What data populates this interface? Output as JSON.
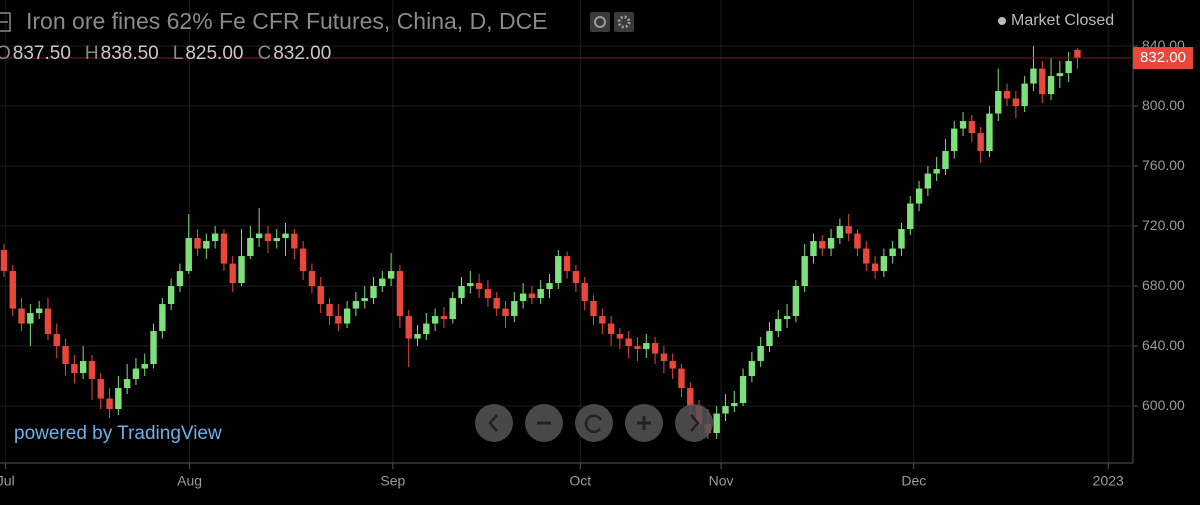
{
  "chart_data": {
    "type": "candlestick",
    "title": "Iron ore fines 62% Fe CFR Futures, China, D, DCE",
    "status": "Market Closed",
    "ohlc_legend": {
      "labels": [
        "O",
        "H",
        "L",
        "C"
      ],
      "values": [
        "837.50",
        "838.50",
        "825.00",
        "832.00"
      ]
    },
    "last_price_label": "832.00",
    "last_price": 832,
    "watermark": "powered by TradingView",
    "up_color": "#7ee07a",
    "down_color": "#e8473b",
    "grid": true,
    "xlim": [
      -0.45,
      128.2
    ],
    "xticks": [
      {
        "value": 0.2,
        "label": "Jul"
      },
      {
        "value": 21.1,
        "label": "Aug"
      },
      {
        "value": 44.2,
        "label": "Sep"
      },
      {
        "value": 65.5,
        "label": "Oct"
      },
      {
        "value": 81.5,
        "label": "Nov"
      },
      {
        "value": 103.4,
        "label": "Dec"
      },
      {
        "value": 125.5,
        "label": "2023"
      }
    ],
    "ylim": [
      562.7,
      870.7
    ],
    "yticks": [
      {
        "value": 600,
        "label": "600.00"
      },
      {
        "value": 640,
        "label": "640.00"
      },
      {
        "value": 680,
        "label": "680.00"
      },
      {
        "value": 720,
        "label": "720.00"
      },
      {
        "value": 760,
        "label": "760.00"
      },
      {
        "value": 800,
        "label": "800.00"
      },
      {
        "value": 840,
        "label": "840.00"
      }
    ],
    "open": [
      704,
      690,
      665,
      655,
      662,
      665,
      648,
      640,
      628,
      622,
      630,
      618,
      605,
      598,
      612,
      618,
      625,
      628,
      650,
      668,
      680,
      690,
      712,
      705,
      710,
      715,
      695,
      682,
      700,
      712,
      715,
      710,
      712,
      715,
      705,
      690,
      680,
      668,
      660,
      655,
      665,
      670,
      672,
      680,
      685,
      690,
      660,
      645,
      648,
      655,
      660,
      658,
      672,
      680,
      682,
      678,
      672,
      665,
      660,
      670,
      675,
      672,
      678,
      682,
      700,
      690,
      682,
      670,
      660,
      655,
      648,
      645,
      640,
      638,
      642,
      635,
      630,
      625,
      612,
      600,
      588,
      582,
      595,
      600,
      602,
      620,
      630,
      640,
      650,
      658,
      660,
      680,
      700,
      710,
      705,
      712,
      720,
      715,
      705,
      695,
      690,
      700,
      705,
      718,
      735,
      745,
      755,
      758,
      770,
      785,
      790,
      782,
      770,
      795,
      810,
      805,
      800,
      815,
      825,
      808,
      820,
      822,
      837.5
    ],
    "high": [
      708,
      694,
      672,
      668,
      670,
      672,
      655,
      645,
      634,
      640,
      634,
      622,
      612,
      620,
      628,
      632,
      635,
      655,
      672,
      685,
      695,
      728,
      718,
      715,
      720,
      718,
      700,
      718,
      720,
      732,
      720,
      718,
      722,
      718,
      710,
      695,
      686,
      672,
      668,
      670,
      676,
      680,
      686,
      690,
      702,
      694,
      664,
      654,
      662,
      665,
      666,
      676,
      686,
      690,
      688,
      684,
      676,
      670,
      676,
      682,
      680,
      684,
      688,
      704,
      703,
      694,
      686,
      674,
      665,
      660,
      652,
      650,
      646,
      648,
      646,
      640,
      635,
      628,
      616,
      604,
      598,
      600,
      608,
      610,
      625,
      636,
      646,
      656,
      664,
      668,
      684,
      708,
      715,
      714,
      718,
      725,
      728,
      718,
      710,
      700,
      705,
      710,
      722,
      740,
      750,
      760,
      766,
      778,
      790,
      796,
      794,
      786,
      800,
      825,
      815,
      810,
      820,
      840,
      830,
      832,
      830,
      836,
      838.5
    ],
    "low": [
      686,
      660,
      650,
      640,
      658,
      644,
      632,
      620,
      615,
      618,
      604,
      598,
      592,
      594,
      608,
      614,
      620,
      625,
      645,
      664,
      676,
      688,
      700,
      698,
      705,
      690,
      676,
      680,
      698,
      706,
      702,
      705,
      700,
      698,
      684,
      675,
      662,
      654,
      650,
      652,
      660,
      665,
      668,
      676,
      680,
      652,
      626,
      640,
      644,
      650,
      652,
      655,
      668,
      675,
      672,
      666,
      660,
      652,
      656,
      665,
      668,
      668,
      672,
      678,
      685,
      676,
      664,
      654,
      648,
      640,
      638,
      632,
      630,
      632,
      628,
      622,
      618,
      606,
      594,
      582,
      578,
      578,
      590,
      596,
      600,
      616,
      626,
      636,
      646,
      652,
      656,
      676,
      695,
      700,
      700,
      708,
      710,
      700,
      690,
      685,
      686,
      695,
      700,
      714,
      730,
      740,
      750,
      754,
      765,
      780,
      776,
      762,
      766,
      790,
      800,
      792,
      796,
      810,
      802,
      804,
      812,
      816,
      825
    ],
    "close": [
      690,
      665,
      655,
      662,
      665,
      648,
      640,
      628,
      622,
      630,
      618,
      605,
      598,
      612,
      618,
      625,
      628,
      650,
      668,
      680,
      690,
      712,
      705,
      710,
      715,
      695,
      682,
      700,
      712,
      715,
      710,
      712,
      715,
      705,
      690,
      680,
      668,
      660,
      655,
      665,
      670,
      672,
      680,
      685,
      690,
      660,
      645,
      648,
      655,
      660,
      658,
      672,
      680,
      682,
      678,
      672,
      665,
      660,
      670,
      675,
      672,
      678,
      682,
      700,
      690,
      682,
      670,
      660,
      655,
      648,
      645,
      640,
      638,
      642,
      635,
      630,
      625,
      612,
      600,
      588,
      582,
      595,
      600,
      602,
      620,
      630,
      640,
      650,
      658,
      660,
      680,
      700,
      710,
      705,
      712,
      720,
      715,
      705,
      695,
      690,
      700,
      705,
      718,
      735,
      745,
      755,
      758,
      770,
      785,
      790,
      782,
      770,
      795,
      810,
      805,
      800,
      815,
      825,
      808,
      820,
      822,
      830,
      832
    ]
  }
}
